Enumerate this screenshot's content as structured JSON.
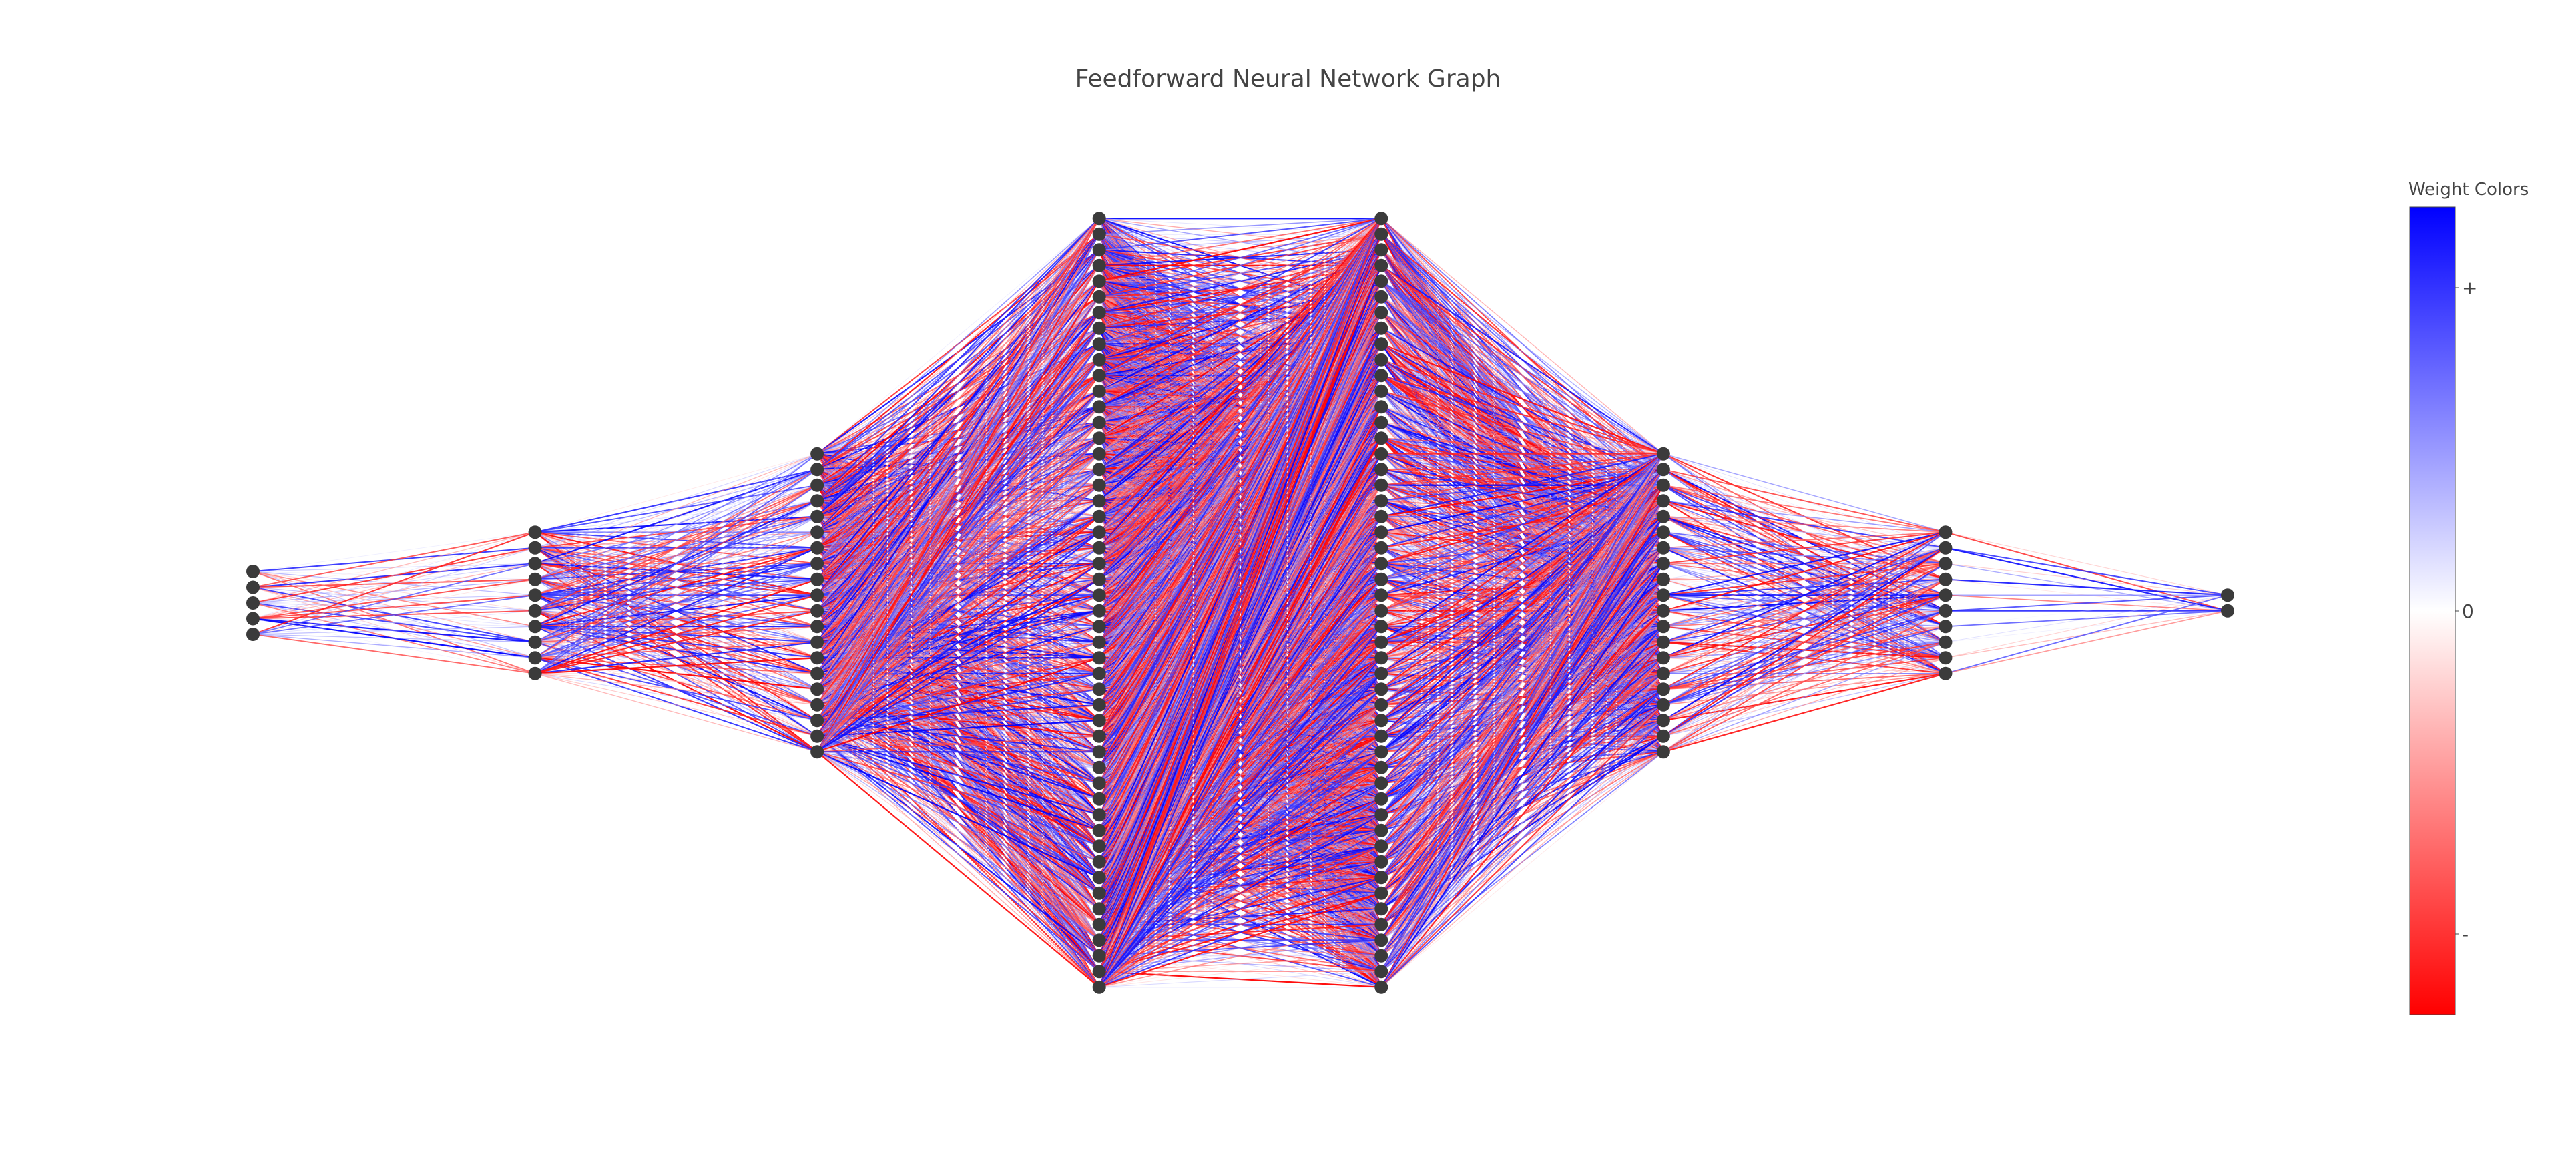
{
  "title": "Feedforward Neural Network Graph",
  "network": {
    "layer_sizes": [
      5,
      10,
      20,
      50,
      50,
      20,
      10,
      2
    ],
    "node_color": "#3b3b3b"
  },
  "colorbar": {
    "title": "Weight Colors",
    "ticks": [
      {
        "label": "+",
        "value": 0.8
      },
      {
        "label": "0",
        "value": 0.0
      },
      {
        "label": "-",
        "value": -0.8
      }
    ],
    "range": [
      -1,
      1
    ],
    "colors": {
      "negative": "#ff0000",
      "zero": "#ffffff",
      "positive": "#0000ff"
    }
  }
}
